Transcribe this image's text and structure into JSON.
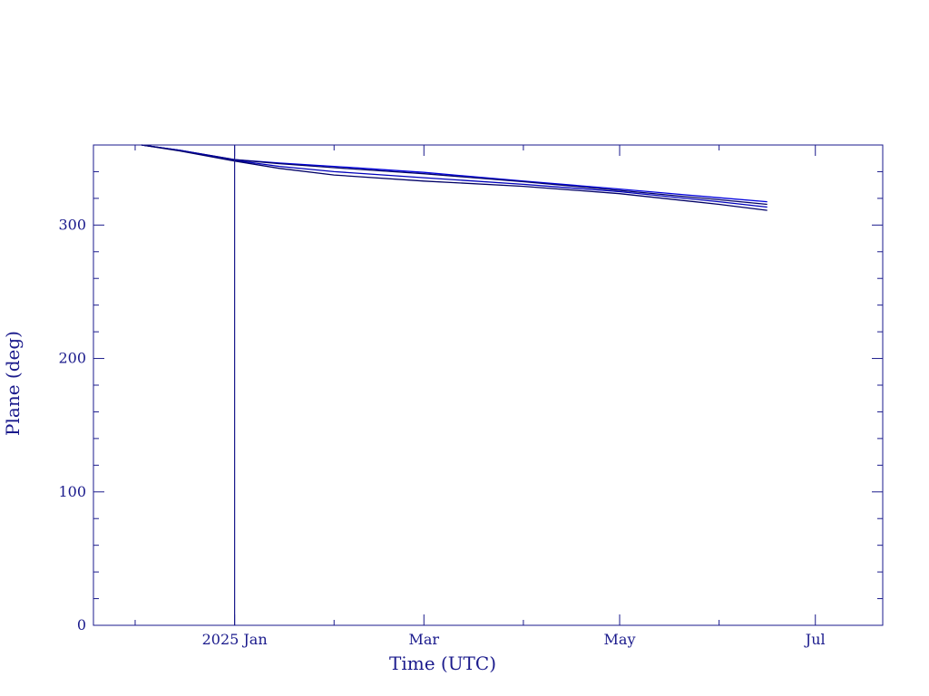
{
  "chart_data": {
    "type": "line",
    "xlabel": "Time (UTC)",
    "ylabel": "Plane (deg)",
    "xlim": [
      "2024-11-18",
      "2025-07-22"
    ],
    "ylim": [
      0,
      360
    ],
    "y_ticks": [
      0,
      100,
      200,
      300
    ],
    "x_ticks": [
      {
        "label": "2025 Jan",
        "date": "2025-01-01"
      },
      {
        "label": "Mar",
        "date": "2025-03-01"
      },
      {
        "label": "May",
        "date": "2025-05-01"
      },
      {
        "label": "Jul",
        "date": "2025-07-01"
      }
    ],
    "reference_line": {
      "date": "2025-01-01"
    },
    "grid": false,
    "colors": {
      "frame": "#1a1a8c",
      "series": "#0000dd",
      "reference": "#1a1a8c"
    },
    "series": [
      {
        "x": [
          "2024-12-03",
          "2024-12-15",
          "2025-01-01",
          "2025-01-15",
          "2025-02-01",
          "2025-03-01",
          "2025-04-01",
          "2025-05-01",
          "2025-06-01",
          "2025-06-16"
        ],
        "y": [
          360,
          356,
          349,
          346.5,
          344,
          339.5,
          333,
          327,
          320.5,
          317.5
        ]
      },
      {
        "x": [
          "2024-12-03",
          "2024-12-15",
          "2025-01-01",
          "2025-01-15",
          "2025-02-01",
          "2025-03-01",
          "2025-04-01",
          "2025-05-01",
          "2025-06-01",
          "2025-06-16"
        ],
        "y": [
          360,
          356,
          349,
          346,
          343,
          338.5,
          332.5,
          326,
          319,
          315.5
        ]
      },
      {
        "x": [
          "2024-12-03",
          "2024-12-15",
          "2025-01-01",
          "2025-01-15",
          "2025-02-01",
          "2025-03-01",
          "2025-04-01",
          "2025-05-01",
          "2025-06-01",
          "2025-06-16"
        ],
        "y": [
          360,
          356,
          348.5,
          344,
          340,
          335.5,
          330.5,
          325,
          317.5,
          313.5
        ]
      },
      {
        "x": [
          "2024-12-03",
          "2024-12-15",
          "2025-01-01",
          "2025-01-15",
          "2025-02-01",
          "2025-03-01",
          "2025-04-01",
          "2025-05-01",
          "2025-06-01",
          "2025-06-16"
        ],
        "y": [
          360,
          355.5,
          348,
          342.5,
          337.5,
          333,
          329,
          323.5,
          315.5,
          311
        ]
      }
    ]
  }
}
